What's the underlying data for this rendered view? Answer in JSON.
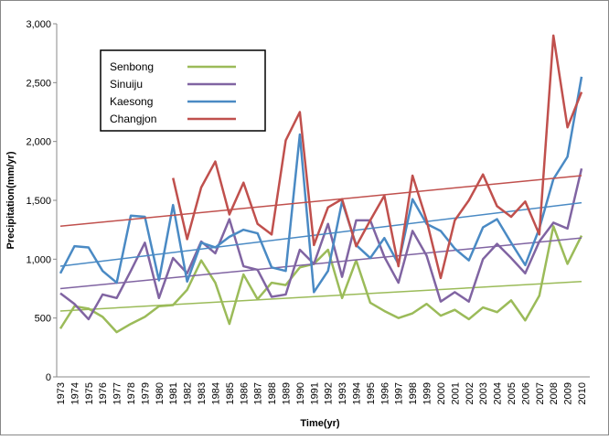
{
  "chart_data": {
    "type": "line",
    "x_label": "Time(yr)",
    "y_label": "Precipitation(mm/yr)",
    "categories": [
      "1973",
      "1974",
      "1975",
      "1976",
      "1977",
      "1978",
      "1979",
      "1980",
      "1981",
      "1982",
      "1983",
      "1984",
      "1985",
      "1986",
      "1987",
      "1988",
      "1989",
      "1990",
      "1991",
      "1992",
      "1993",
      "1994",
      "1995",
      "1996",
      "1997",
      "1998",
      "1999",
      "2000",
      "2001",
      "2002",
      "2003",
      "2004",
      "2005",
      "2006",
      "2007",
      "2008",
      "2009",
      "2010"
    ],
    "ylim": [
      0,
      3000
    ],
    "yticks": [
      0,
      500,
      {
        "value": 1000,
        "label": "1,000"
      },
      {
        "value": 1500,
        "label": "1,500"
      },
      {
        "value": 2000,
        "label": "2,000"
      },
      {
        "value": 2500,
        "label": "2,500"
      },
      {
        "value": 3000,
        "label": "3,000"
      }
    ],
    "legend": "upper left",
    "series": [
      {
        "name": "Senbong",
        "color": "#9bbb59",
        "trend": [
          560,
          810
        ],
        "values": [
          410,
          600,
          580,
          510,
          380,
          450,
          510,
          600,
          610,
          740,
          990,
          800,
          450,
          870,
          660,
          800,
          780,
          930,
          960,
          1080,
          670,
          990,
          630,
          560,
          500,
          540,
          620,
          520,
          570,
          490,
          590,
          550,
          650,
          480,
          690,
          1280,
          960,
          1200
        ]
      },
      {
        "name": "Sinuiju",
        "color": "#8064a2",
        "trend": [
          750,
          1180
        ],
        "values": [
          710,
          620,
          490,
          700,
          670,
          900,
          1140,
          670,
          1010,
          880,
          1150,
          1050,
          1340,
          940,
          910,
          680,
          700,
          1080,
          960,
          1300,
          850,
          1330,
          1330,
          1020,
          800,
          1240,
          1030,
          640,
          720,
          640,
          1000,
          1130,
          1010,
          880,
          1150,
          1310,
          1260,
          1770
        ]
      },
      {
        "name": "Kaesong",
        "color": "#4a8ac4",
        "trend": [
          940,
          1480
        ],
        "values": [
          880,
          1110,
          1100,
          900,
          800,
          1370,
          1360,
          820,
          1460,
          810,
          1140,
          1100,
          1190,
          1250,
          1220,
          930,
          900,
          2060,
          720,
          900,
          1490,
          1120,
          1010,
          1180,
          960,
          1510,
          1300,
          1240,
          1090,
          990,
          1270,
          1340,
          1140,
          950,
          1260,
          1680,
          1870,
          2550
        ]
      },
      {
        "name": "Changjon",
        "color": "#c0504d",
        "trend": [
          1280,
          1710
        ],
        "values": [
          null,
          null,
          null,
          null,
          null,
          null,
          null,
          null,
          1690,
          1170,
          1610,
          1830,
          1380,
          1650,
          1300,
          1210,
          2010,
          2250,
          1120,
          1440,
          1510,
          1110,
          1330,
          1540,
          940,
          1710,
          1330,
          840,
          1330,
          1500,
          1720,
          1450,
          1360,
          1490,
          1210,
          2900,
          2120,
          2420
        ]
      }
    ]
  }
}
